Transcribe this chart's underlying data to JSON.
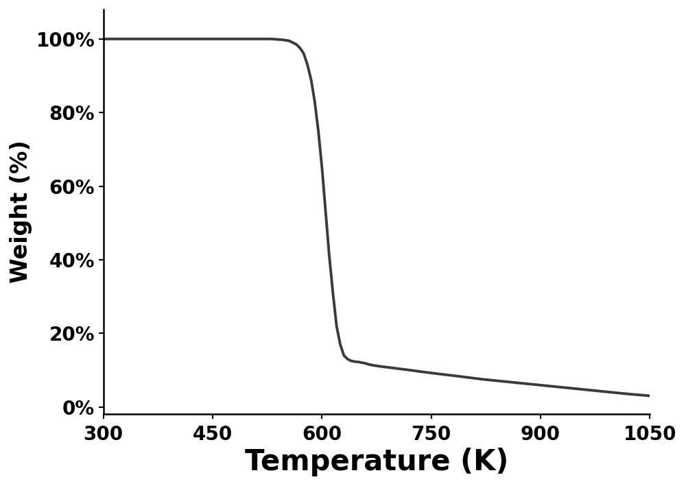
{
  "xlabel": "Temperature (K)",
  "ylabel": "Weight (%)",
  "xlim": [
    300,
    1050
  ],
  "ylim": [
    -2,
    108
  ],
  "yticks": [
    0,
    20,
    40,
    60,
    80,
    100
  ],
  "xticks": [
    300,
    450,
    600,
    750,
    900,
    1050
  ],
  "line_color": "#3a3a3a",
  "line_width": 2.8,
  "background_color": "#ffffff",
  "xlabel_fontsize": 30,
  "ylabel_fontsize": 24,
  "tick_fontsize": 20,
  "curve": {
    "x": [
      300,
      350,
      400,
      450,
      500,
      530,
      545,
      555,
      560,
      565,
      570,
      575,
      580,
      585,
      590,
      595,
      600,
      605,
      610,
      615,
      620,
      625,
      630,
      635,
      640,
      645,
      650,
      655,
      660,
      665,
      670,
      680,
      700,
      720,
      750,
      780,
      820,
      870,
      920,
      970,
      1020,
      1050
    ],
    "y": [
      100,
      100,
      100,
      100,
      100,
      100,
      99.8,
      99.5,
      99,
      98.5,
      97.5,
      96,
      93,
      89,
      83,
      75,
      65,
      53,
      41,
      31,
      22,
      17,
      14,
      13,
      12.5,
      12.3,
      12.2,
      12,
      11.8,
      11.5,
      11.3,
      11,
      10.5,
      10,
      9.2,
      8.5,
      7.5,
      6.5,
      5.5,
      4.5,
      3.5,
      3
    ]
  }
}
